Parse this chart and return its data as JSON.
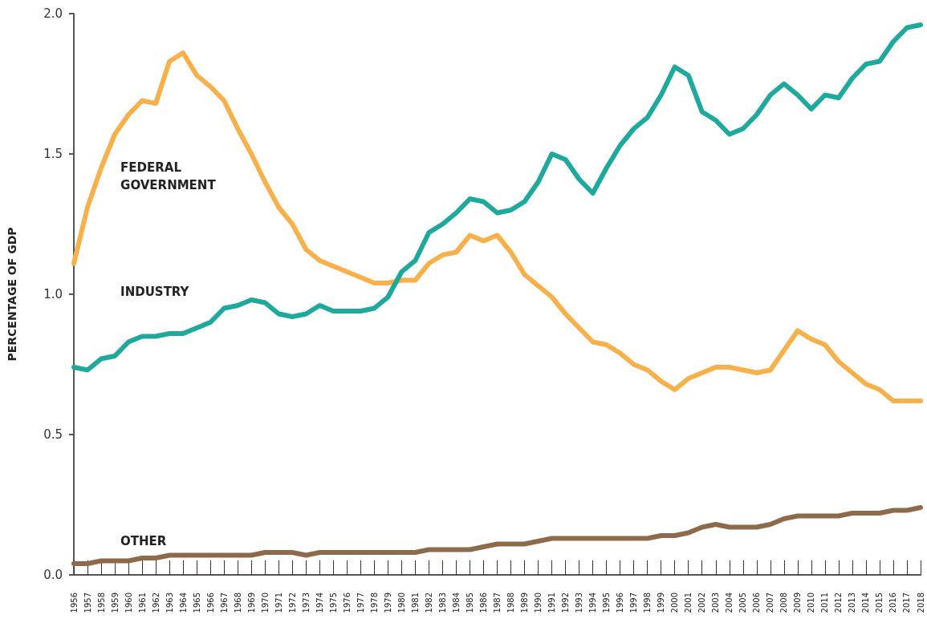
{
  "chart_data": {
    "type": "line",
    "ylabel": "PERCENTAGE OF GDP",
    "categories": [
      "1956",
      "1957",
      "1958",
      "1959",
      "1960",
      "1961",
      "1962",
      "1963",
      "1964",
      "1965",
      "1966",
      "1967",
      "1968",
      "1969",
      "1970",
      "1971",
      "1972",
      "1973",
      "1974",
      "1975",
      "1976",
      "1977",
      "1978",
      "1979",
      "1980",
      "1981",
      "1982",
      "1983",
      "1984",
      "1985",
      "1986",
      "1987",
      "1988",
      "1989",
      "1990",
      "1991",
      "1992",
      "1993",
      "1994",
      "1995",
      "1996",
      "1997",
      "1998",
      "1999",
      "2000",
      "2001",
      "2002",
      "2003",
      "2004",
      "2005",
      "2006",
      "2007",
      "2008",
      "2009",
      "2010",
      "2011",
      "2012",
      "2013",
      "2014",
      "2015",
      "2016",
      "2017",
      "2018"
    ],
    "series": [
      {
        "name": "FEDERAL\nGOVERNMENT",
        "color": "#f8b04a",
        "values": [
          1.11,
          1.31,
          1.45,
          1.57,
          1.64,
          1.69,
          1.68,
          1.83,
          1.86,
          1.78,
          1.74,
          1.69,
          1.59,
          1.5,
          1.4,
          1.31,
          1.25,
          1.16,
          1.12,
          1.1,
          1.08,
          1.06,
          1.04,
          1.04,
          1.05,
          1.05,
          1.11,
          1.14,
          1.15,
          1.21,
          1.19,
          1.21,
          1.15,
          1.07,
          1.03,
          0.99,
          0.93,
          0.88,
          0.83,
          0.82,
          0.79,
          0.75,
          0.73,
          0.69,
          0.66,
          0.7,
          0.72,
          0.74,
          0.74,
          0.73,
          0.72,
          0.73,
          0.8,
          0.87,
          0.84,
          0.82,
          0.76,
          0.72,
          0.68,
          0.66,
          0.62,
          0.62,
          0.62
        ]
      },
      {
        "name": "INDUSTRY",
        "color": "#1ea99c",
        "values": [
          0.74,
          0.73,
          0.77,
          0.78,
          0.83,
          0.85,
          0.85,
          0.86,
          0.86,
          0.88,
          0.9,
          0.95,
          0.96,
          0.98,
          0.97,
          0.93,
          0.92,
          0.93,
          0.96,
          0.94,
          0.94,
          0.94,
          0.95,
          0.99,
          1.08,
          1.12,
          1.22,
          1.25,
          1.29,
          1.34,
          1.33,
          1.29,
          1.3,
          1.33,
          1.4,
          1.5,
          1.48,
          1.41,
          1.36,
          1.45,
          1.53,
          1.59,
          1.63,
          1.71,
          1.81,
          1.78,
          1.65,
          1.62,
          1.57,
          1.59,
          1.64,
          1.71,
          1.75,
          1.71,
          1.66,
          1.71,
          1.7,
          1.77,
          1.82,
          1.83,
          1.9,
          1.95,
          1.96
        ]
      },
      {
        "name": "OTHER",
        "color": "#8c6a4a",
        "values": [
          0.04,
          0.04,
          0.05,
          0.05,
          0.05,
          0.06,
          0.06,
          0.07,
          0.07,
          0.07,
          0.07,
          0.07,
          0.07,
          0.07,
          0.08,
          0.08,
          0.08,
          0.07,
          0.08,
          0.08,
          0.08,
          0.08,
          0.08,
          0.08,
          0.08,
          0.08,
          0.09,
          0.09,
          0.09,
          0.09,
          0.1,
          0.11,
          0.11,
          0.11,
          0.12,
          0.13,
          0.13,
          0.13,
          0.13,
          0.13,
          0.13,
          0.13,
          0.13,
          0.14,
          0.14,
          0.15,
          0.17,
          0.18,
          0.17,
          0.17,
          0.17,
          0.18,
          0.2,
          0.21,
          0.21,
          0.21,
          0.21,
          0.22,
          0.22,
          0.22,
          0.23,
          0.23,
          0.24
        ]
      }
    ],
    "ylim": [
      0,
      2
    ],
    "yticks": [
      {
        "value": 0,
        "label": "0.0"
      },
      0.5,
      {
        "value": 1,
        "label": "1.0"
      },
      1.5,
      {
        "value": 2,
        "label": "2.0"
      }
    ],
    "grid": false,
    "marker": "none",
    "line_style": "solid"
  }
}
